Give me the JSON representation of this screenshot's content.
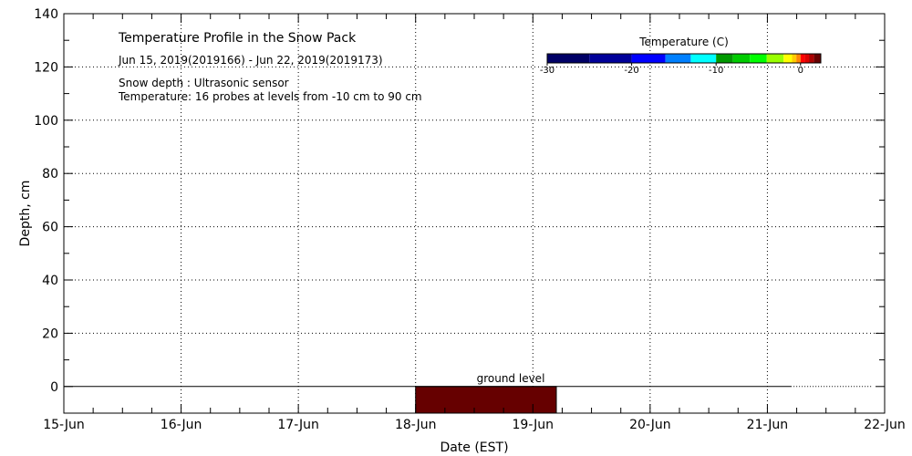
{
  "chart_data": {
    "type": "area",
    "title": "Temperature Profile in the Snow Pack",
    "subtitle": "Jun 15, 2019(2019166) - Jun 22, 2019(2019173)",
    "notes": [
      "Snow depth : Ultrasonic sensor",
      "Temperature: 16 probes at levels from -10 cm to 90 cm"
    ],
    "xlabel": "Date (EST)",
    "ylabel": "Depth, cm",
    "xlim": [
      "15-Jun",
      "22-Jun"
    ],
    "x_ticks": [
      "15-Jun",
      "16-Jun",
      "17-Jun",
      "18-Jun",
      "19-Jun",
      "20-Jun",
      "21-Jun",
      "22-Jun"
    ],
    "ylim": [
      -10,
      140
    ],
    "y_ticks": [
      0,
      20,
      40,
      60,
      80,
      100,
      120,
      140
    ],
    "grid": true,
    "ground_label": "ground level",
    "ground_line": {
      "solid_until_day": 6.2,
      "dotted_until_day": 6.9
    },
    "regions": [
      {
        "x_start_day": 3.0,
        "x_end_day": 4.2,
        "y_from": -10,
        "y_to": 0,
        "color": "#660000"
      }
    ],
    "colorbar": {
      "title": "Temperature (C)",
      "range": [
        -30,
        2.4
      ],
      "ticks": [
        -30,
        -20,
        -10,
        0
      ],
      "stops": [
        {
          "from": -30,
          "to": -25,
          "color": "#000066"
        },
        {
          "from": -25,
          "to": -20,
          "color": "#000099"
        },
        {
          "from": -20,
          "to": -16,
          "color": "#0000ff"
        },
        {
          "from": -16,
          "to": -13,
          "color": "#0080ff"
        },
        {
          "from": -13,
          "to": -10,
          "color": "#00ffff"
        },
        {
          "from": -10,
          "to": -8,
          "color": "#009900"
        },
        {
          "from": -8,
          "to": -6,
          "color": "#00cc00"
        },
        {
          "from": -6,
          "to": -4,
          "color": "#00ff00"
        },
        {
          "from": -4,
          "to": -2,
          "color": "#99ff00"
        },
        {
          "from": -2,
          "to": -1,
          "color": "#ffff00"
        },
        {
          "from": -1,
          "to": -0.5,
          "color": "#ffcc00"
        },
        {
          "from": -0.5,
          "to": 0,
          "color": "#ff8800"
        },
        {
          "from": 0,
          "to": 0.5,
          "color": "#ff0000"
        },
        {
          "from": 0.5,
          "to": 1,
          "color": "#dd0000"
        },
        {
          "from": 1,
          "to": 1.6,
          "color": "#aa0000"
        },
        {
          "from": 1.6,
          "to": 2.4,
          "color": "#660000"
        }
      ]
    }
  }
}
